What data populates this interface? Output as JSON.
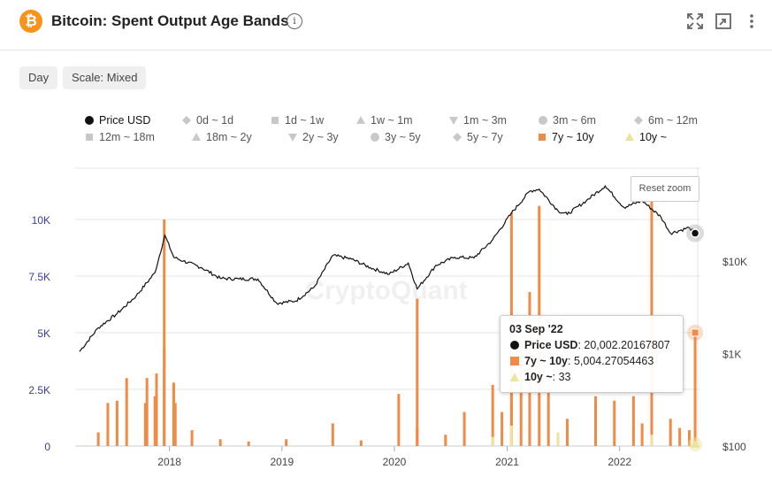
{
  "header": {
    "title": "Bitcoin: Spent Output Age Bands",
    "logo_glyph": "₿",
    "info_glyph": "i",
    "icons": [
      "expand-icon",
      "window-icon",
      "more-vert-icon"
    ]
  },
  "controls": {
    "interval_label": "Day",
    "scale_label": "Scale: Mixed"
  },
  "legend": [
    {
      "label": "Price USD",
      "symbol": "circle",
      "color": "#111111",
      "active": true
    },
    {
      "label": "0d ~ 1d",
      "symbol": "diamond",
      "color": "#c8c8c8",
      "active": false
    },
    {
      "label": "1d ~ 1w",
      "symbol": "square",
      "color": "#c8c8c8",
      "active": false
    },
    {
      "label": "1w ~ 1m",
      "symbol": "triangle",
      "color": "#c8c8c8",
      "active": false
    },
    {
      "label": "1m ~ 3m",
      "symbol": "triangle-down",
      "color": "#c8c8c8",
      "active": false
    },
    {
      "label": "3m ~ 6m",
      "symbol": "circle",
      "color": "#c8c8c8",
      "active": false
    },
    {
      "label": "6m ~ 12m",
      "symbol": "diamond",
      "color": "#c8c8c8",
      "active": false
    },
    {
      "label": "12m ~ 18m",
      "symbol": "square",
      "color": "#c8c8c8",
      "active": false
    },
    {
      "label": "18m ~ 2y",
      "symbol": "triangle",
      "color": "#c8c8c8",
      "active": false
    },
    {
      "label": "2y ~ 3y",
      "symbol": "triangle-down",
      "color": "#c8c8c8",
      "active": false
    },
    {
      "label": "3y ~ 5y",
      "symbol": "circle",
      "color": "#c8c8c8",
      "active": false
    },
    {
      "label": "5y ~ 7y",
      "symbol": "diamond",
      "color": "#c8c8c8",
      "active": false
    },
    {
      "label": "7y ~ 10y",
      "symbol": "square",
      "color": "#f08a45",
      "active": true
    },
    {
      "label": "10y ~",
      "symbol": "triangle",
      "color": "#ece49a",
      "active": true
    }
  ],
  "reset_zoom_label": "Reset zoom",
  "watermark": "CryptoQuant",
  "tooltip": {
    "date": "03 Sep '22",
    "rows": [
      {
        "name": "Price USD",
        "value": "20,002.20167807",
        "color": "#111111",
        "symbol": "circle"
      },
      {
        "name": "7y ~ 10y",
        "value": "5,004.27054463",
        "color": "#f08a45",
        "symbol": "square"
      },
      {
        "name": "10y ~",
        "value": "33",
        "color": "#ece49a",
        "symbol": "triangle"
      }
    ]
  },
  "colors": {
    "price": "#111111",
    "bars": "#f08a45",
    "bars_10y": "#ece49a",
    "left_axis_text": "#3a3aa0",
    "grid": "#e6e6e6"
  },
  "chart_data": {
    "type": "bar",
    "title": "Bitcoin: Spent Output Age Bands",
    "x_ticks": [
      "2018",
      "2019",
      "2020",
      "2021",
      "2022"
    ],
    "x_range": [
      "2017-03",
      "2022-09"
    ],
    "left_axis": {
      "ticks": [
        "0",
        "2.5K",
        "5K",
        "7.5K",
        "10K"
      ],
      "ylim": [
        0,
        10000
      ]
    },
    "right_axis": {
      "ticks": [
        "$100",
        "$1K",
        "$10K"
      ],
      "scale": "log"
    },
    "grid": true,
    "legend_placement": "top",
    "price_series": {
      "name": "Price USD",
      "type": "line",
      "points": [
        [
          "2017-03",
          1050
        ],
        [
          "2017-05",
          1900
        ],
        [
          "2017-07",
          2700
        ],
        [
          "2017-09",
          4200
        ],
        [
          "2017-11",
          7500
        ],
        [
          "2017-12-17",
          19000
        ],
        [
          "2018-01",
          11000
        ],
        [
          "2018-02",
          10000
        ],
        [
          "2018-04",
          8500
        ],
        [
          "2018-06",
          6500
        ],
        [
          "2018-08",
          6400
        ],
        [
          "2018-10",
          6400
        ],
        [
          "2018-12",
          3500
        ],
        [
          "2019-02",
          3700
        ],
        [
          "2019-04",
          5200
        ],
        [
          "2019-06",
          11500
        ],
        [
          "2019-08",
          10500
        ],
        [
          "2019-10",
          8500
        ],
        [
          "2019-12",
          7200
        ],
        [
          "2020-02",
          9500
        ],
        [
          "2020-03",
          5000
        ],
        [
          "2020-05",
          9000
        ],
        [
          "2020-07",
          11000
        ],
        [
          "2020-09",
          10800
        ],
        [
          "2020-11",
          17000
        ],
        [
          "2021-01",
          33000
        ],
        [
          "2021-03",
          57000
        ],
        [
          "2021-04",
          60000
        ],
        [
          "2021-06",
          35000
        ],
        [
          "2021-07",
          32000
        ],
        [
          "2021-09",
          45000
        ],
        [
          "2021-11",
          65000
        ],
        [
          "2022-01",
          38000
        ],
        [
          "2022-03",
          45000
        ],
        [
          "2022-05",
          30000
        ],
        [
          "2022-06",
          20000
        ],
        [
          "2022-08",
          23000
        ],
        [
          "2022-09-03",
          20002
        ]
      ]
    },
    "series": [
      {
        "name": "7y ~ 10y",
        "type": "bar",
        "points": [
          [
            "2017-05",
            600
          ],
          [
            "2017-06",
            1900
          ],
          [
            "2017-07",
            2000
          ],
          [
            "2017-08",
            3000
          ],
          [
            "2017-10",
            1900
          ],
          [
            "2017-10-20",
            3000
          ],
          [
            "2017-11",
            2200
          ],
          [
            "2017-11-20",
            3200
          ],
          [
            "2017-12",
            4300
          ],
          [
            "2017-12-15",
            10000
          ],
          [
            "2018-01",
            2800
          ],
          [
            "2018-01-20",
            1900
          ],
          [
            "2018-03",
            700
          ],
          [
            "2018-06",
            300
          ],
          [
            "2018-09",
            200
          ],
          [
            "2019-01",
            300
          ],
          [
            "2019-06",
            1000
          ],
          [
            "2019-09",
            250
          ],
          [
            "2020-01",
            2300
          ],
          [
            "2020-03",
            800
          ],
          [
            "2020-03-15",
            6500
          ],
          [
            "2020-06",
            500
          ],
          [
            "2020-08",
            1500
          ],
          [
            "2020-11",
            2700
          ],
          [
            "2020-12",
            1500
          ],
          [
            "2021-01",
            2000
          ],
          [
            "2021-01-15",
            10300
          ],
          [
            "2021-02",
            4600
          ],
          [
            "2021-03",
            6800
          ],
          [
            "2021-04",
            10600
          ],
          [
            "2021-05",
            2500
          ],
          [
            "2021-07",
            1200
          ],
          [
            "2021-10",
            2200
          ],
          [
            "2021-12",
            2000
          ],
          [
            "2022-02",
            2200
          ],
          [
            "2022-03",
            1000
          ],
          [
            "2022-04",
            11000
          ],
          [
            "2022-06",
            1200
          ],
          [
            "2022-07",
            800
          ],
          [
            "2022-08",
            700
          ],
          [
            "2022-09-03",
            5004
          ]
        ]
      },
      {
        "name": "10y ~",
        "type": "bar",
        "points": [
          [
            "2020-11",
            400
          ],
          [
            "2021-01",
            900
          ],
          [
            "2021-06",
            600
          ],
          [
            "2022-04",
            500
          ],
          [
            "2022-09-03",
            33
          ]
        ]
      }
    ],
    "annotations": []
  }
}
